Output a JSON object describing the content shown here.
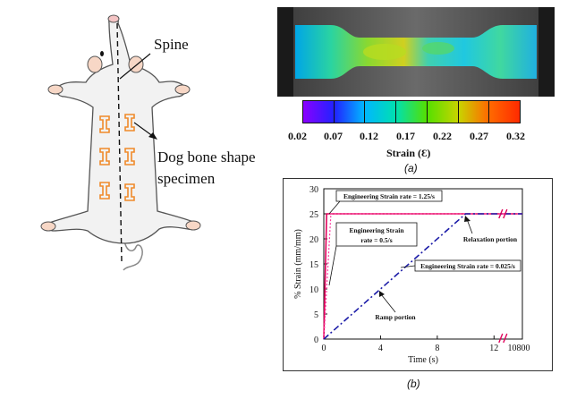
{
  "left_diagram": {
    "spine_label": "Spine",
    "specimen_label_line1": "Dog bone shape",
    "specimen_label_line2": "specimen"
  },
  "top_right": {
    "colorbar_ticks": [
      "0.02",
      "0.07",
      "0.12",
      "0.17",
      "0.22",
      "0.27",
      "0.32"
    ],
    "colorbar_title": "Strain (Ɛ)",
    "colorbar_colors": [
      "#8a00ff",
      "#2222ff",
      "#00b7ff",
      "#00e0b0",
      "#55e000",
      "#c8d400",
      "#ff6a00",
      "#ff2a00"
    ],
    "caption": "(a)"
  },
  "chart_data": {
    "type": "line",
    "xlabel": "Time (s)",
    "ylabel": "% Strain (mm/mm)",
    "xlim": [
      0,
      14
    ],
    "ylim": [
      0,
      30
    ],
    "x_ticks": [
      "0",
      "4",
      "8",
      "12"
    ],
    "x_tick_last": "10800",
    "y_ticks": [
      "0",
      "5",
      "10",
      "15",
      "20",
      "25",
      "30"
    ],
    "series": [
      {
        "x": [
          0,
          0.2,
          14
        ],
        "y": [
          0,
          25,
          25
        ],
        "color": "#e0005a"
      },
      {
        "x": [
          0,
          0.5,
          14
        ],
        "y": [
          0,
          25,
          25
        ],
        "color": "#ff3aa0"
      },
      {
        "x": [
          0,
          10,
          14
        ],
        "y": [
          0,
          25,
          25
        ],
        "color": "#1c1ca8"
      }
    ],
    "annotations": [
      "Engineering Strain rate = 1.25/s",
      "Engineering  Strain",
      "rate = 0.5/s",
      "Relaxation portion",
      "Engineering Strain rate = 0.025/s",
      "Ramp portion"
    ],
    "caption": "(b)"
  }
}
